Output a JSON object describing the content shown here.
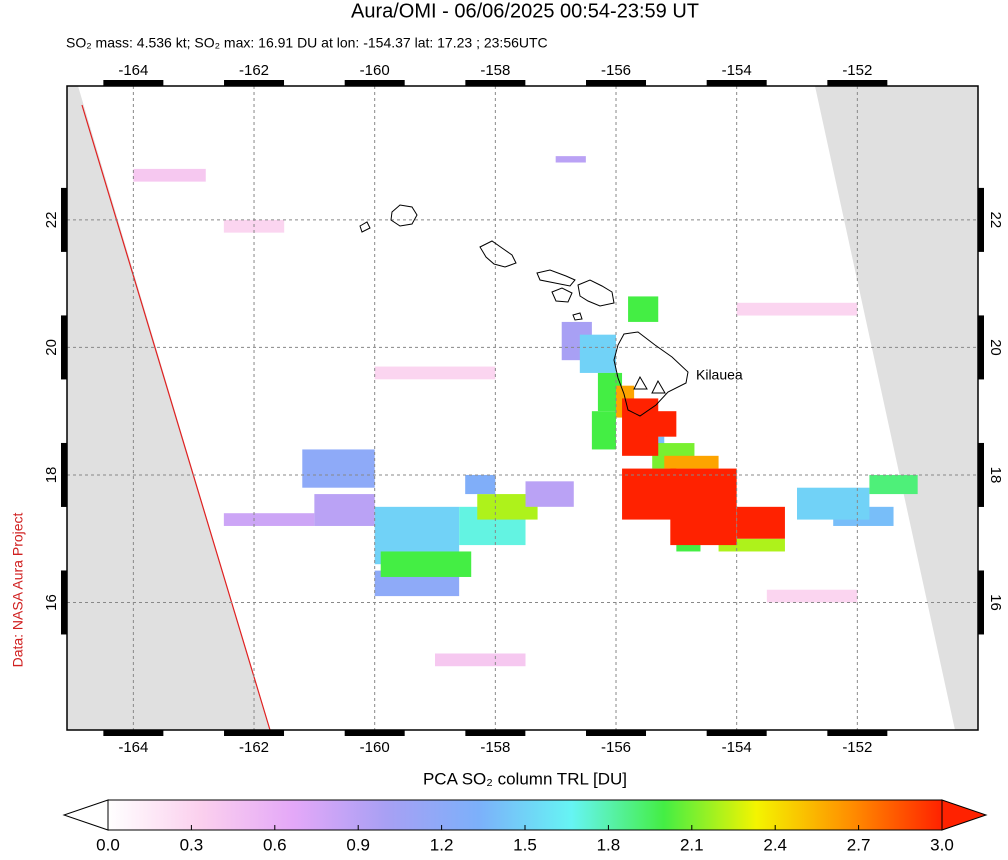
{
  "map": {
    "type": "map",
    "title": "Aura/OMI - 06/06/2025 00:54-23:59 UT",
    "subtitle": "SO₂ mass: 4.536 kt; SO₂ max: 16.91 DU at lon: -154.37 lat: 17.23 ; 23:56UTC",
    "credit": "Data: NASA Aura Project",
    "annotation": "Kilauea",
    "xlim": [
      -165.1,
      -150.0
    ],
    "ylim": [
      14.0,
      24.1
    ],
    "xticks": [
      -164,
      -162,
      -160,
      -158,
      -156,
      -154,
      -152
    ],
    "yticks": [
      16,
      18,
      20,
      22
    ],
    "grid": true,
    "colorbar_label": "PCA SO₂ column TRL [DU]",
    "clim": [
      0,
      3
    ],
    "cticks": [
      {
        "value": 0,
        "label": "0.0"
      },
      0.3,
      0.6,
      0.9,
      1.2,
      1.5,
      1.8,
      2.1,
      2.4,
      2.7,
      {
        "value": 3,
        "label": "3.0"
      }
    ],
    "colormap": [
      "#ffffff",
      "#fbd0ee",
      "#e4a8f8",
      "#a8a0f4",
      "#7cb0fa",
      "#66f4f4",
      "#44ee44",
      "#f4f400",
      "#ff9000",
      "#ff2200"
    ],
    "pixels": [
      {
        "lon0": -164.0,
        "lon1": -162.8,
        "lat0": 22.6,
        "lat1": 22.8,
        "value": 0.4
      },
      {
        "lon0": -162.5,
        "lon1": -161.5,
        "lat0": 21.8,
        "lat1": 22.0,
        "value": 0.3
      },
      {
        "lon0": -157.0,
        "lon1": -156.5,
        "lat0": 22.9,
        "lat1": 23.0,
        "value": 0.9
      },
      {
        "lon0": -160.0,
        "lon1": -158.0,
        "lat0": 19.5,
        "lat1": 19.7,
        "value": 0.3
      },
      {
        "lon0": -154.0,
        "lon1": -152.0,
        "lat0": 20.5,
        "lat1": 20.7,
        "value": 0.3
      },
      {
        "lon0": -159.0,
        "lon1": -157.5,
        "lat0": 15.0,
        "lat1": 15.2,
        "value": 0.4
      },
      {
        "lon0": -153.5,
        "lon1": -152.0,
        "lat0": 16.0,
        "lat1": 16.2,
        "value": 0.3
      },
      {
        "lon0": -162.5,
        "lon1": -161.0,
        "lat0": 17.2,
        "lat1": 17.4,
        "value": 0.8
      },
      {
        "lon0": -161.0,
        "lon1": -160.0,
        "lat0": 17.2,
        "lat1": 17.7,
        "value": 0.9
      },
      {
        "lon0": -161.2,
        "lon1": -160.0,
        "lat0": 17.8,
        "lat1": 18.4,
        "value": 1.2
      },
      {
        "lon0": -160.0,
        "lon1": -158.6,
        "lat0": 16.1,
        "lat1": 16.5,
        "value": 1.2
      },
      {
        "lon0": -160.0,
        "lon1": -158.6,
        "lat0": 16.6,
        "lat1": 17.5,
        "value": 1.5
      },
      {
        "lon0": -159.9,
        "lon1": -158.4,
        "lat0": 16.4,
        "lat1": 16.8,
        "value": 2.0
      },
      {
        "lon0": -158.6,
        "lon1": -157.5,
        "lat0": 16.9,
        "lat1": 17.5,
        "value": 1.7
      },
      {
        "lon0": -158.3,
        "lon1": -157.3,
        "lat0": 17.3,
        "lat1": 17.7,
        "value": 2.2
      },
      {
        "lon0": -158.5,
        "lon1": -158.0,
        "lat0": 17.7,
        "lat1": 18.0,
        "value": 1.3
      },
      {
        "lon0": -157.5,
        "lon1": -156.7,
        "lat0": 17.5,
        "lat1": 17.9,
        "value": 0.9
      },
      {
        "lon0": -156.9,
        "lon1": -156.4,
        "lat0": 19.8,
        "lat1": 20.4,
        "value": 1.0
      },
      {
        "lon0": -156.6,
        "lon1": -156.0,
        "lat0": 19.6,
        "lat1": 20.2,
        "value": 1.5
      },
      {
        "lon0": -155.8,
        "lon1": -155.3,
        "lat0": 20.4,
        "lat1": 20.8,
        "value": 2.0
      },
      {
        "lon0": -156.4,
        "lon1": -156.0,
        "lat0": 18.4,
        "lat1": 19.0,
        "value": 2.0
      },
      {
        "lon0": -156.3,
        "lon1": -155.9,
        "lat0": 19.0,
        "lat1": 19.6,
        "value": 2.0
      },
      {
        "lon0": -156.0,
        "lon1": -155.7,
        "lat0": 18.9,
        "lat1": 19.4,
        "value": 2.6
      },
      {
        "lon0": -155.6,
        "lon1": -155.2,
        "lat0": 18.3,
        "lat1": 18.6,
        "value": 1.4
      },
      {
        "lon0": -155.4,
        "lon1": -154.7,
        "lat0": 18.1,
        "lat1": 18.5,
        "value": 2.1
      },
      {
        "lon0": -155.2,
        "lon1": -154.3,
        "lat0": 18.1,
        "lat1": 18.3,
        "value": 2.6
      },
      {
        "lon0": -155.9,
        "lon1": -155.3,
        "lat0": 18.3,
        "lat1": 19.2,
        "value": 3.0
      },
      {
        "lon0": -155.5,
        "lon1": -155.0,
        "lat0": 18.6,
        "lat1": 19.0,
        "value": 3.0
      },
      {
        "lon0": -155.0,
        "lon1": -154.6,
        "lat0": 16.8,
        "lat1": 17.0,
        "value": 2.0
      },
      {
        "lon0": -154.3,
        "lon1": -153.2,
        "lat0": 16.8,
        "lat1": 17.0,
        "value": 2.2
      },
      {
        "lon0": -155.9,
        "lon1": -155.0,
        "lat0": 17.3,
        "lat1": 18.1,
        "value": 3.0
      },
      {
        "lon0": -155.1,
        "lon1": -154.0,
        "lat0": 16.9,
        "lat1": 18.1,
        "value": 3.0
      },
      {
        "lon0": -154.0,
        "lon1": -153.2,
        "lat0": 17.0,
        "lat1": 17.5,
        "value": 3.0
      },
      {
        "lon0": -152.4,
        "lon1": -151.4,
        "lat0": 17.2,
        "lat1": 17.5,
        "value": 1.4
      },
      {
        "lon0": -153.0,
        "lon1": -151.8,
        "lat0": 17.3,
        "lat1": 17.8,
        "value": 1.5
      },
      {
        "lon0": -151.8,
        "lon1": -151.0,
        "lat0": 17.7,
        "lat1": 18.0,
        "value": 1.9
      }
    ]
  }
}
